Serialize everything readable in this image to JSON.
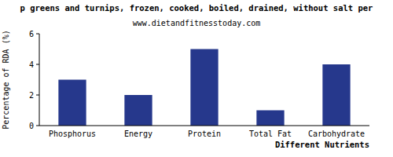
{
  "chart_data": {
    "type": "bar",
    "title": "p greens and turnips, frozen, cooked, boiled, drained, without salt per",
    "subtitle": "www.dietandfitnesstoday.com",
    "x_label": "Different Nutrients",
    "y_label": "Percentage of RDA (%)",
    "categories": [
      "Phosphorus",
      "Energy",
      "Protein",
      "Total Fat",
      "Carbohydrate"
    ],
    "values": [
      3,
      2,
      5,
      1,
      4
    ],
    "color": "#26388c",
    "ylim": [
      0,
      6
    ],
    "yticks": [
      0,
      2,
      4,
      6
    ],
    "grid": false
  }
}
